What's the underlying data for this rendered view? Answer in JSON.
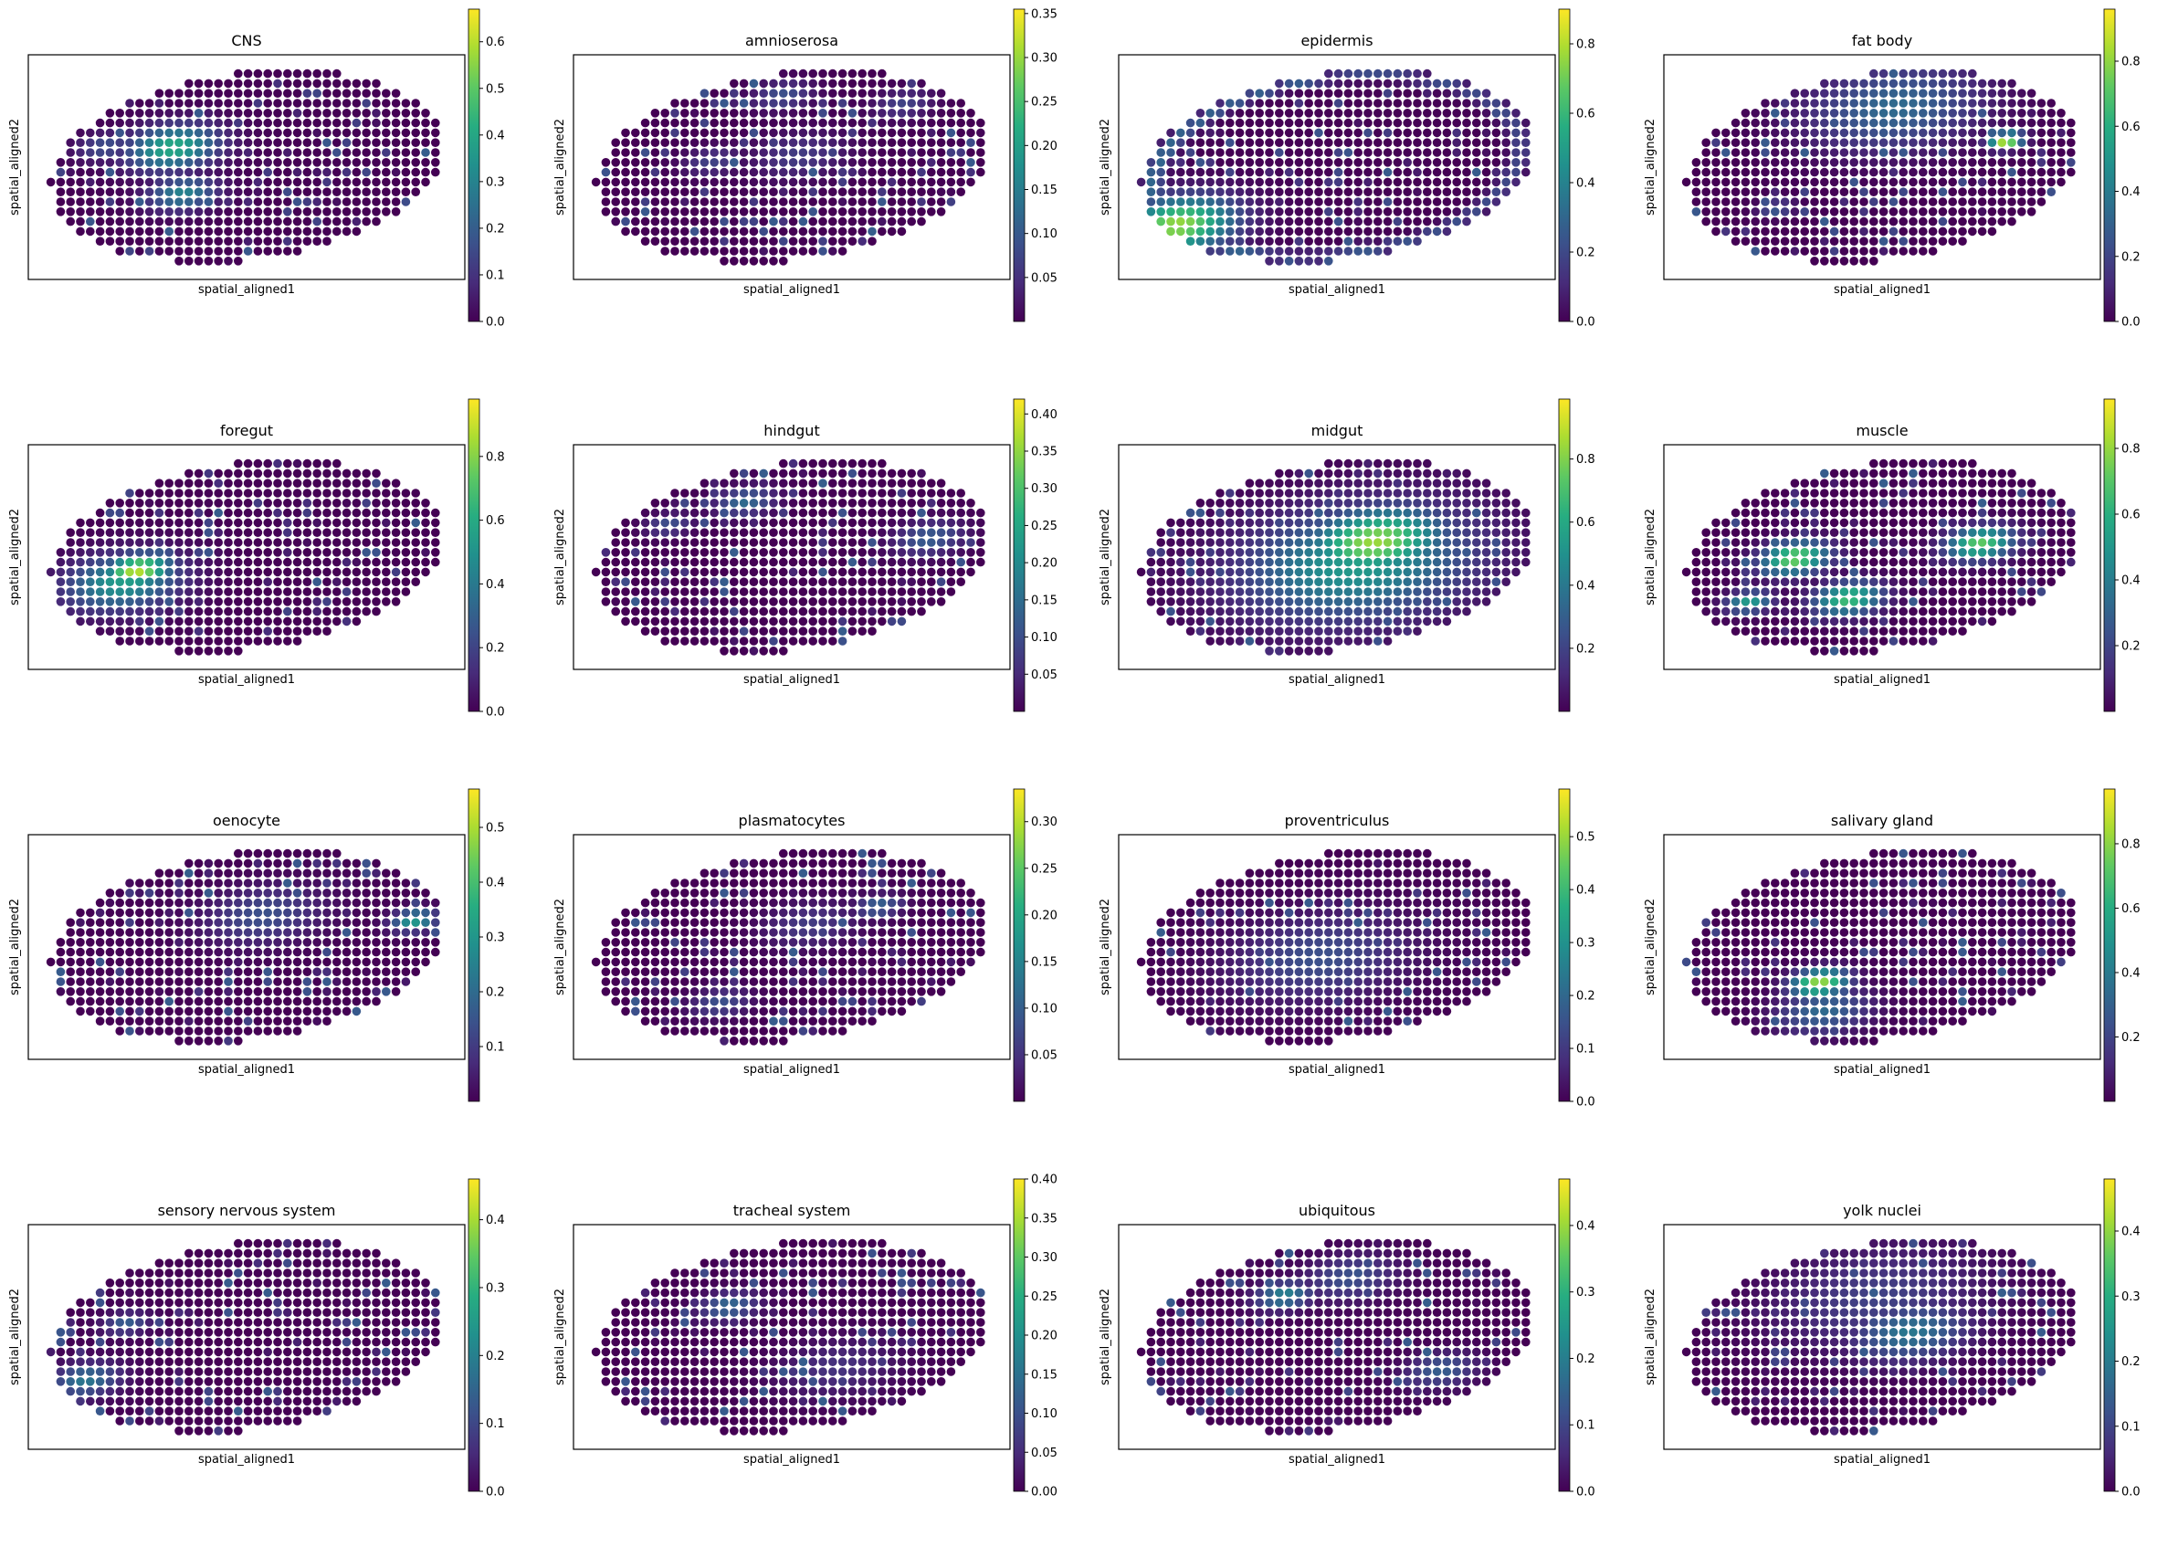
{
  "chart_data": {
    "type": "scatter",
    "description_axes": {
      "xlabel": "spatial_aligned1",
      "ylabel": "spatial_aligned2"
    },
    "colormap": [
      "#440154",
      "#472c7a",
      "#3b518b",
      "#2c718e",
      "#21908d",
      "#27ad81",
      "#5cc863",
      "#aadc32",
      "#fde725"
    ],
    "panels": [
      {
        "title": "CNS",
        "xlabel": "spatial_aligned1",
        "ylabel": "spatial_aligned2",
        "vmax": 0.67,
        "ticks": [
          "0.0",
          "0.1",
          "0.2",
          "0.3",
          "0.4",
          "0.5",
          "0.6"
        ],
        "tickvals": [
          0,
          0.1,
          0.2,
          0.3,
          0.4,
          0.5,
          0.6
        ],
        "vmin": 0,
        "hotspots": [
          [
            0.32,
            0.35,
            0.62,
            0.08
          ],
          [
            0.33,
            0.6,
            0.45,
            0.06
          ],
          [
            0.15,
            0.3,
            0.25,
            0.05
          ]
        ]
      },
      {
        "title": "amnioserosa",
        "xlabel": "spatial_aligned1",
        "ylabel": "spatial_aligned2",
        "vmax": 0.355,
        "ticks": [
          "0.05",
          "0.10",
          "0.15",
          "0.20",
          "0.25",
          "0.30",
          "0.35"
        ],
        "tickvals": [
          0.05,
          0.1,
          0.15,
          0.2,
          0.25,
          0.3,
          0.35
        ],
        "vmin": 0.0,
        "hotspots": [
          [
            0.3,
            0.42,
            0.2,
            0.05
          ],
          [
            0.52,
            0.45,
            0.18,
            0.08
          ],
          [
            0.5,
            0.12,
            0.25,
            0.05
          ],
          [
            0.8,
            0.25,
            0.2,
            0.05
          ]
        ]
      },
      {
        "title": "epidermis",
        "xlabel": "spatial_aligned1",
        "ylabel": "spatial_aligned2",
        "vmax": 0.9,
        "ticks": [
          "0.0",
          "0.2",
          "0.4",
          "0.6",
          "0.8"
        ],
        "tickvals": [
          0,
          0.2,
          0.4,
          0.6,
          0.8
        ],
        "vmin": 0,
        "hotspots": [
          [
            0.08,
            0.7,
            0.85,
            0.1
          ]
        ],
        "ring": 0.35
      },
      {
        "title": "fat body",
        "xlabel": "spatial_aligned1",
        "ylabel": "spatial_aligned2",
        "vmax": 0.96,
        "ticks": [
          "0.0",
          "0.2",
          "0.4",
          "0.6",
          "0.8"
        ],
        "tickvals": [
          0,
          0.2,
          0.4,
          0.6,
          0.8
        ],
        "vmin": 0,
        "hotspots": [
          [
            0.82,
            0.45,
            0.95,
            0.03
          ],
          [
            0.55,
            0.2,
            0.35,
            0.15
          ],
          [
            0.22,
            0.65,
            0.3,
            0.03
          ]
        ]
      },
      {
        "title": "foregut",
        "xlabel": "spatial_aligned1",
        "ylabel": "spatial_aligned2",
        "vmax": 0.98,
        "ticks": [
          "0.0",
          "0.2",
          "0.4",
          "0.6",
          "0.8"
        ],
        "tickvals": [
          0,
          0.2,
          0.4,
          0.6,
          0.8
        ],
        "vmin": 0,
        "hotspots": [
          [
            0.22,
            0.5,
            0.9,
            0.06
          ],
          [
            0.18,
            0.55,
            0.55,
            0.1
          ]
        ]
      },
      {
        "title": "hindgut",
        "xlabel": "spatial_aligned1",
        "ylabel": "spatial_aligned2",
        "vmax": 0.42,
        "ticks": [
          "0.05",
          "0.10",
          "0.15",
          "0.20",
          "0.25",
          "0.30",
          "0.35",
          "0.40"
        ],
        "tickvals": [
          0.05,
          0.1,
          0.15,
          0.2,
          0.25,
          0.3,
          0.35,
          0.4
        ],
        "vmin": 0.0,
        "hotspots": [
          [
            0.4,
            0.18,
            0.35,
            0.05
          ],
          [
            0.85,
            0.5,
            0.3,
            0.06
          ],
          [
            0.2,
            0.25,
            0.25,
            0.04
          ]
        ]
      },
      {
        "title": "midgut",
        "xlabel": "spatial_aligned1",
        "ylabel": "spatial_aligned2",
        "vmax": 0.99,
        "ticks": [
          "0.2",
          "0.4",
          "0.6",
          "0.8"
        ],
        "tickvals": [
          0.2,
          0.4,
          0.6,
          0.8
        ],
        "vmin": 0.0,
        "hotspots": [
          [
            0.6,
            0.45,
            0.85,
            0.12
          ],
          [
            0.55,
            0.55,
            0.55,
            0.2
          ]
        ]
      },
      {
        "title": "muscle",
        "xlabel": "spatial_aligned1",
        "ylabel": "spatial_aligned2",
        "vmax": 0.95,
        "ticks": [
          "0.2",
          "0.4",
          "0.6",
          "0.8"
        ],
        "tickvals": [
          0.2,
          0.4,
          0.6,
          0.8
        ],
        "vmin": 0.0,
        "hotspots": [
          [
            0.28,
            0.45,
            0.8,
            0.06
          ],
          [
            0.4,
            0.7,
            0.7,
            0.06
          ],
          [
            0.75,
            0.5,
            0.75,
            0.06
          ],
          [
            0.15,
            0.65,
            0.55,
            0.04
          ]
        ]
      },
      {
        "title": "oenocyte",
        "xlabel": "spatial_aligned1",
        "ylabel": "spatial_aligned2",
        "vmax": 0.57,
        "ticks": [
          "0.1",
          "0.2",
          "0.3",
          "0.4",
          "0.5"
        ],
        "tickvals": [
          0.1,
          0.2,
          0.3,
          0.4,
          0.5
        ],
        "vmin": 0.0,
        "hotspots": [
          [
            0.93,
            0.48,
            0.55,
            0.04
          ],
          [
            0.55,
            0.35,
            0.25,
            0.1
          ]
        ]
      },
      {
        "title": "plasmatocytes",
        "xlabel": "spatial_aligned1",
        "ylabel": "spatial_aligned2",
        "vmax": 0.335,
        "ticks": [
          "0.05",
          "0.10",
          "0.15",
          "0.20",
          "0.25",
          "0.30"
        ],
        "tickvals": [
          0.05,
          0.1,
          0.15,
          0.2,
          0.25,
          0.3
        ],
        "vmin": 0.0,
        "hotspots": [
          [
            0.73,
            0.35,
            0.33,
            0.04
          ],
          [
            0.3,
            0.75,
            0.25,
            0.05
          ],
          [
            0.55,
            0.4,
            0.18,
            0.08
          ]
        ]
      },
      {
        "title": "proventriculus",
        "xlabel": "spatial_aligned1",
        "ylabel": "spatial_aligned2",
        "vmax": 0.59,
        "ticks": [
          "0.0",
          "0.1",
          "0.2",
          "0.3",
          "0.4",
          "0.5"
        ],
        "tickvals": [
          0,
          0.1,
          0.2,
          0.3,
          0.4,
          0.5
        ],
        "vmin": 0,
        "hotspots": [
          [
            0.45,
            0.55,
            0.25,
            0.15
          ],
          [
            0.13,
            0.88,
            0.55,
            0.02
          ]
        ]
      },
      {
        "title": "salivary gland",
        "xlabel": "spatial_aligned1",
        "ylabel": "spatial_aligned2",
        "vmax": 0.97,
        "ticks": [
          "0.2",
          "0.4",
          "0.6",
          "0.8"
        ],
        "tickvals": [
          0.2,
          0.4,
          0.6,
          0.8
        ],
        "vmin": 0.0,
        "hotspots": [
          [
            0.33,
            0.65,
            0.85,
            0.05
          ],
          [
            0.33,
            0.8,
            0.35,
            0.08
          ]
        ]
      },
      {
        "title": "sensory nervous system",
        "xlabel": "spatial_aligned1",
        "ylabel": "spatial_aligned2",
        "vmax": 0.46,
        "ticks": [
          "0.0",
          "0.1",
          "0.2",
          "0.3",
          "0.4"
        ],
        "tickvals": [
          0,
          0.1,
          0.2,
          0.3,
          0.4
        ],
        "vmin": 0,
        "hotspots": [
          [
            0.08,
            0.62,
            0.4,
            0.06
          ],
          [
            0.2,
            0.35,
            0.3,
            0.04
          ]
        ]
      },
      {
        "title": "tracheal system",
        "xlabel": "spatial_aligned1",
        "ylabel": "spatial_aligned2",
        "vmax": 0.4,
        "ticks": [
          "0.00",
          "0.05",
          "0.10",
          "0.15",
          "0.20",
          "0.25",
          "0.30",
          "0.35",
          "0.40"
        ],
        "tickvals": [
          0,
          0.05,
          0.1,
          0.15,
          0.2,
          0.25,
          0.3,
          0.35,
          0.4
        ],
        "vmin": 0,
        "hotspots": [
          [
            0.35,
            0.3,
            0.35,
            0.05
          ],
          [
            0.6,
            0.7,
            0.15,
            0.1
          ]
        ]
      },
      {
        "title": "ubiquitous",
        "xlabel": "spatial_aligned1",
        "ylabel": "spatial_aligned2",
        "vmax": 0.47,
        "ticks": [
          "0.0",
          "0.1",
          "0.2",
          "0.3",
          "0.4"
        ],
        "tickvals": [
          0,
          0.1,
          0.2,
          0.3,
          0.4
        ],
        "vmin": 0,
        "hotspots": [
          [
            0.38,
            0.25,
            0.45,
            0.05
          ],
          [
            0.55,
            0.2,
            0.25,
            0.08
          ],
          [
            0.75,
            0.75,
            0.3,
            0.06
          ]
        ]
      },
      {
        "title": "yolk nuclei",
        "xlabel": "spatial_aligned1",
        "ylabel": "spatial_aligned2",
        "vmax": 0.48,
        "ticks": [
          "0.0",
          "0.1",
          "0.2",
          "0.3",
          "0.4"
        ],
        "tickvals": [
          0,
          0.1,
          0.2,
          0.3,
          0.4
        ],
        "vmin": 0,
        "hotspots": [
          [
            0.57,
            0.5,
            0.4,
            0.1
          ],
          [
            0.5,
            0.3,
            0.2,
            0.18
          ]
        ]
      }
    ]
  }
}
